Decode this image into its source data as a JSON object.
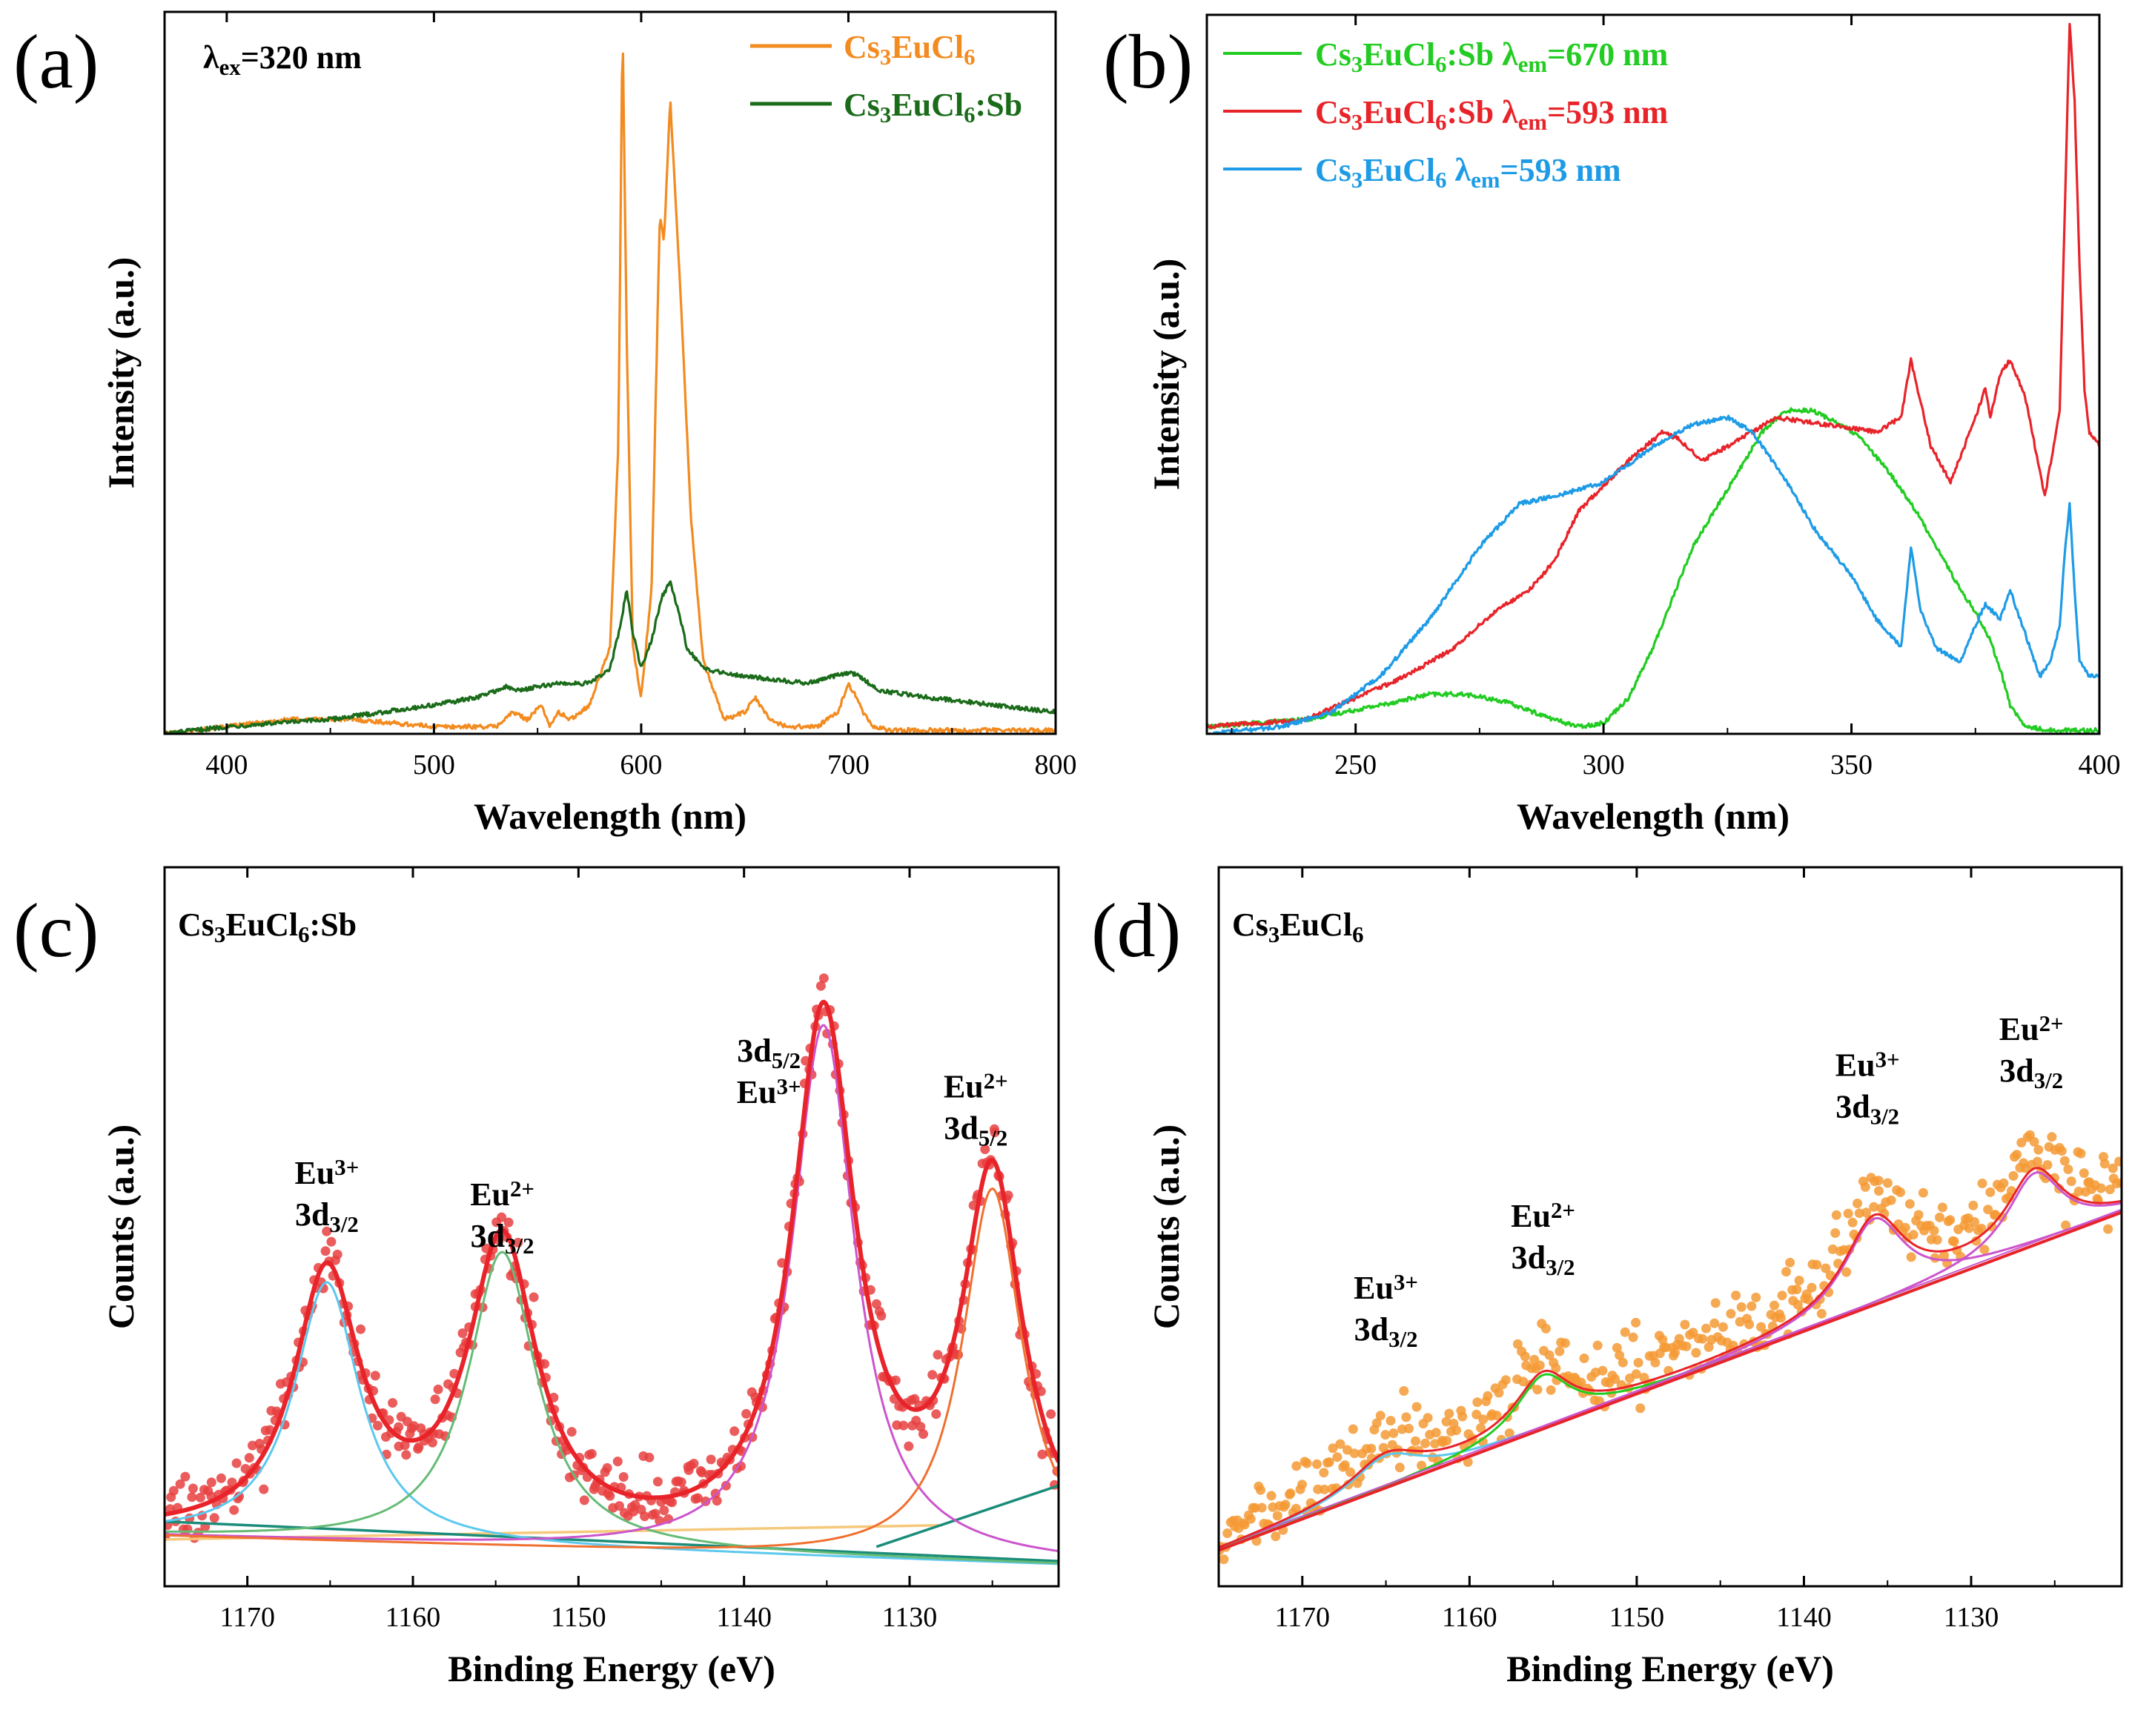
{
  "colors": {
    "orange": "#f28b20",
    "darkgreen": "#1a6b1a",
    "green": "#22cc22",
    "red": "#e8242a",
    "blue": "#1e9be6",
    "fit_red": "#e8242a",
    "cyan": "#5cc8ee",
    "mgreen": "#66bb77",
    "magenta": "#cc55cc",
    "orangefit": "#f07030",
    "beige": "#f5c87a",
    "teal": "#1a8c7a",
    "xpsdot_red": "#e84040",
    "xpsdot_orange": "#f59a35"
  },
  "chart_data": [
    {
      "id": "a",
      "panel_label": "(a)",
      "type": "line",
      "xlabel": "Wavelength (nm)",
      "ylabel": "Intensity (a.u.)",
      "xlim": [
        370,
        800
      ],
      "ylim": [
        0,
        1.0
      ],
      "x_ticks": [
        400,
        500,
        600,
        700,
        800
      ],
      "x_tick_labels": [
        "400",
        "500",
        "600",
        "700",
        "800"
      ],
      "annotation": {
        "main": "λ",
        "sub": "ex",
        "rest": "=320 nm"
      },
      "legend": [
        {
          "parts": [
            [
              "Cs",
              "n"
            ],
            [
              "3",
              "sub"
            ],
            [
              "EuCl",
              "n"
            ],
            [
              "6",
              "sub"
            ]
          ],
          "color_key": "orange"
        },
        {
          "parts": [
            [
              "Cs",
              "n"
            ],
            [
              "3",
              "sub"
            ],
            [
              "EuCl",
              "n"
            ],
            [
              "6",
              "sub"
            ],
            [
              ":Sb",
              "n"
            ]
          ],
          "color_key": "darkgreen"
        }
      ],
      "series": [
        {
          "name": "Cs3EuCl6",
          "color_key": "orange",
          "x": [
            370,
            400,
            430,
            460,
            500,
            520,
            530,
            538,
            545,
            552,
            556,
            560,
            566,
            575,
            585,
            589,
            591,
            593,
            596,
            600,
            605,
            609,
            611,
            614,
            617,
            620,
            624,
            630,
            640,
            650,
            655,
            662,
            670,
            685,
            695,
            700,
            703,
            707,
            712,
            720,
            760,
            800
          ],
          "y": [
            0.0,
            0.01,
            0.02,
            0.02,
            0.01,
            0.01,
            0.01,
            0.03,
            0.02,
            0.04,
            0.01,
            0.03,
            0.02,
            0.04,
            0.12,
            0.4,
            0.99,
            0.55,
            0.12,
            0.05,
            0.2,
            0.72,
            0.68,
            0.88,
            0.72,
            0.55,
            0.3,
            0.1,
            0.02,
            0.03,
            0.05,
            0.02,
            0.01,
            0.01,
            0.03,
            0.07,
            0.055,
            0.03,
            0.01,
            0.005,
            0.005,
            0.005
          ]
        },
        {
          "name": "Cs3EuCl6:Sb",
          "color_key": "darkgreen",
          "x": [
            370,
            400,
            450,
            500,
            520,
            535,
            540,
            550,
            560,
            575,
            585,
            590,
            593,
            596,
            600,
            605,
            610,
            614,
            618,
            622,
            630,
            650,
            680,
            700,
            705,
            715,
            740,
            770,
            800
          ],
          "y": [
            0.0,
            0.01,
            0.02,
            0.04,
            0.05,
            0.065,
            0.06,
            0.065,
            0.07,
            0.07,
            0.09,
            0.15,
            0.2,
            0.14,
            0.09,
            0.13,
            0.19,
            0.21,
            0.17,
            0.12,
            0.09,
            0.08,
            0.07,
            0.085,
            0.08,
            0.06,
            0.05,
            0.04,
            0.03
          ]
        }
      ]
    },
    {
      "id": "b",
      "panel_label": "(b)",
      "type": "line",
      "xlabel": "Wavelength (nm)",
      "ylabel": "Intensity (a.u.)",
      "xlim": [
        220,
        400
      ],
      "ylim": [
        0,
        1.0
      ],
      "x_ticks": [
        250,
        300,
        350,
        400
      ],
      "x_tick_labels": [
        "250",
        "300",
        "350",
        "400"
      ],
      "legend": [
        {
          "parts": [
            [
              "Cs",
              "n"
            ],
            [
              "3",
              "sub"
            ],
            [
              "EuCl",
              "n"
            ],
            [
              "6",
              "sub"
            ],
            [
              ":Sb  ",
              "n"
            ],
            [
              "λ",
              "n"
            ],
            [
              "em",
              "sub"
            ],
            [
              "=670 nm",
              "n"
            ]
          ],
          "color_key": "green"
        },
        {
          "parts": [
            [
              "Cs",
              "n"
            ],
            [
              "3",
              "sub"
            ],
            [
              "EuCl",
              "n"
            ],
            [
              "6",
              "sub"
            ],
            [
              ":Sb  ",
              "n"
            ],
            [
              "λ",
              "n"
            ],
            [
              "em",
              "sub"
            ],
            [
              "=593 nm",
              "n"
            ]
          ],
          "color_key": "red"
        },
        {
          "parts": [
            [
              "Cs",
              "n"
            ],
            [
              "3",
              "sub"
            ],
            [
              "EuCl",
              "n"
            ],
            [
              "6",
              "sub"
            ],
            [
              "        ",
              "n"
            ],
            [
              "λ",
              "n"
            ],
            [
              "em",
              "sub"
            ],
            [
              "=593 nm",
              "n"
            ]
          ],
          "color_key": "blue"
        }
      ],
      "series": [
        {
          "name": "Cs3EuCl6:Sb em 670 nm",
          "color_key": "green",
          "x": [
            220,
            240,
            255,
            265,
            272,
            280,
            290,
            295,
            300,
            305,
            310,
            318,
            325,
            332,
            337,
            342,
            348,
            352,
            358,
            363,
            368,
            372,
            375,
            378,
            380,
            382,
            385,
            390,
            400
          ],
          "y": [
            0.01,
            0.02,
            0.04,
            0.055,
            0.055,
            0.045,
            0.02,
            0.01,
            0.015,
            0.05,
            0.12,
            0.26,
            0.34,
            0.42,
            0.45,
            0.45,
            0.43,
            0.41,
            0.36,
            0.31,
            0.25,
            0.2,
            0.17,
            0.13,
            0.09,
            0.04,
            0.01,
            0.005,
            0.005
          ]
        },
        {
          "name": "Cs3EuCl6:Sb em 593 nm",
          "color_key": "red",
          "x": [
            220,
            240,
            250,
            260,
            270,
            278,
            285,
            290,
            295,
            305,
            312,
            315,
            320,
            325,
            330,
            335,
            345,
            355,
            360,
            362,
            364,
            366,
            370,
            375,
            377,
            378,
            380,
            382,
            385,
            389,
            392,
            394,
            395,
            396,
            397,
            398,
            400
          ],
          "y": [
            0.01,
            0.02,
            0.05,
            0.08,
            0.12,
            0.17,
            0.2,
            0.24,
            0.31,
            0.38,
            0.42,
            0.41,
            0.38,
            0.4,
            0.42,
            0.44,
            0.43,
            0.42,
            0.44,
            0.52,
            0.46,
            0.4,
            0.35,
            0.44,
            0.48,
            0.44,
            0.5,
            0.52,
            0.47,
            0.33,
            0.45,
            0.99,
            0.88,
            0.65,
            0.48,
            0.42,
            0.4
          ]
        },
        {
          "name": "Cs3EuCl6 em 593 nm",
          "color_key": "blue",
          "x": [
            220,
            235,
            245,
            255,
            265,
            275,
            283,
            290,
            300,
            310,
            318,
            325,
            330,
            337,
            343,
            350,
            355,
            360,
            362,
            364,
            367,
            372,
            375,
            377,
            380,
            382,
            385,
            388,
            390,
            392,
            393,
            394,
            395,
            396,
            398,
            400
          ],
          "y": [
            0.0,
            0.01,
            0.03,
            0.08,
            0.16,
            0.26,
            0.32,
            0.33,
            0.35,
            0.4,
            0.43,
            0.44,
            0.42,
            0.35,
            0.28,
            0.22,
            0.16,
            0.12,
            0.26,
            0.17,
            0.12,
            0.1,
            0.15,
            0.18,
            0.16,
            0.2,
            0.14,
            0.08,
            0.1,
            0.15,
            0.25,
            0.32,
            0.2,
            0.1,
            0.08,
            0.08
          ]
        }
      ]
    },
    {
      "id": "c",
      "panel_label": "(c)",
      "type": "scatter",
      "xlabel": "Binding Energy (eV)",
      "ylabel": "Counts (a.u.)",
      "xlim": [
        1175,
        1121
      ],
      "ylim": [
        0,
        1.0
      ],
      "x_ticks": [
        1170,
        1160,
        1150,
        1140,
        1130
      ],
      "x_tick_labels": [
        "1170",
        "1160",
        "1150",
        "1140",
        "1130"
      ],
      "sample_label": {
        "parts": [
          [
            "Cs",
            "n"
          ],
          [
            "3",
            "sub"
          ],
          [
            "EuCl",
            "n"
          ],
          [
            "6",
            "sub"
          ],
          [
            ":Sb",
            "n"
          ]
        ]
      },
      "peak_labels": [
        {
          "x": 1165.2,
          "y": 0.56,
          "lines": [
            [
              [
                "Eu",
                "n"
              ],
              [
                "3+",
                "sup"
              ]
            ],
            [
              [
                "3d",
                "n"
              ],
              [
                "3/2",
                "sub"
              ]
            ]
          ]
        },
        {
          "x": 1154.6,
          "y": 0.53,
          "lines": [
            [
              [
                "Eu",
                "n"
              ],
              [
                "2+",
                "sup"
              ]
            ],
            [
              [
                "3d",
                "n"
              ],
              [
                "3/2",
                "sub"
              ]
            ]
          ]
        },
        {
          "x": 1138.5,
          "y": 0.73,
          "lines": [
            [
              [
                "3d",
                "n"
              ],
              [
                "5/2",
                "sub"
              ]
            ],
            [
              [
                "Eu",
                "n"
              ],
              [
                "3+",
                "sup"
              ]
            ]
          ]
        },
        {
          "x": 1126.0,
          "y": 0.68,
          "lines": [
            [
              [
                "Eu",
                "n"
              ],
              [
                "2+",
                "sup"
              ]
            ],
            [
              [
                "3d",
                "n"
              ],
              [
                "5/2",
                "sub"
              ]
            ]
          ]
        }
      ],
      "peaks": [
        {
          "center": 1165.2,
          "height": 0.36,
          "width": 2.4,
          "color_key": "cyan"
        },
        {
          "center": 1154.6,
          "height": 0.41,
          "width": 2.5,
          "color_key": "mgreen"
        },
        {
          "center": 1135.2,
          "height": 0.74,
          "width": 2.3,
          "color_key": "magenta"
        },
        {
          "center": 1125.0,
          "height": 0.52,
          "width": 2.2,
          "color_key": "orangefit"
        }
      ],
      "background": {
        "start": 0.07,
        "end": 0.03
      },
      "extra_lines": [
        {
          "color_key": "beige",
          "x": [
            1175,
            1128
          ],
          "y": [
            0.065,
            0.085
          ]
        },
        {
          "color_key": "teal",
          "x": [
            1175,
            1121
          ],
          "y": [
            0.09,
            0.035
          ]
        },
        {
          "color_key": "teal",
          "x": [
            1132,
            1121
          ],
          "y": [
            0.055,
            0.14
          ]
        }
      ],
      "dot_color_key": "xpsdot_red",
      "fit_color_key": "fit_red",
      "noise": 0.045
    },
    {
      "id": "d",
      "panel_label": "(d)",
      "type": "scatter",
      "xlabel": "Binding Energy (eV)",
      "ylabel": "Counts (a.u.)",
      "xlim": [
        1175,
        1121
      ],
      "ylim": [
        0,
        1.0
      ],
      "x_ticks": [
        1170,
        1160,
        1150,
        1140,
        1130
      ],
      "x_tick_labels": [
        "1170",
        "1160",
        "1150",
        "1140",
        "1130"
      ],
      "sample_label": {
        "parts": [
          [
            "Cs",
            "n"
          ],
          [
            "3",
            "sub"
          ],
          [
            "EuCl",
            "n"
          ],
          [
            "6",
            "sub"
          ]
        ]
      },
      "peak_labels": [
        {
          "x": 1165.0,
          "y": 0.4,
          "lines": [
            [
              [
                "Eu",
                "n"
              ],
              [
                "3+",
                "sup"
              ]
            ],
            [
              [
                "3d",
                "n"
              ],
              [
                "3/2",
                "sub"
              ]
            ]
          ]
        },
        {
          "x": 1155.6,
          "y": 0.5,
          "lines": [
            [
              [
                "Eu",
                "n"
              ],
              [
                "2+",
                "sup"
              ]
            ],
            [
              [
                "3d",
                "n"
              ],
              [
                "3/2",
                "sub"
              ]
            ]
          ]
        },
        {
          "x": 1136.2,
          "y": 0.71,
          "lines": [
            [
              [
                "Eu",
                "n"
              ],
              [
                "3+",
                "sup"
              ]
            ],
            [
              [
                "3d",
                "n"
              ],
              [
                "3/2",
                "sub"
              ]
            ]
          ]
        },
        {
          "x": 1126.4,
          "y": 0.76,
          "lines": [
            [
              [
                "Eu",
                "n"
              ],
              [
                "2+",
                "sup"
              ]
            ],
            [
              [
                "3d",
                "n"
              ],
              [
                "3/2",
                "sub"
              ]
            ]
          ]
        }
      ],
      "peaks": [
        {
          "center": 1165.0,
          "height": 0.045,
          "width": 2.5,
          "color_key": "cyan"
        },
        {
          "center": 1155.6,
          "height": 0.075,
          "width": 2.0,
          "color_key": "green"
        },
        {
          "center": 1135.8,
          "height": 0.12,
          "width": 2.2,
          "color_key": "magenta"
        },
        {
          "center": 1126.2,
          "height": 0.1,
          "width": 2.0,
          "color_key": "magenta"
        }
      ],
      "background": {
        "start": 0.05,
        "end": 0.52
      },
      "background_offset": 0.02,
      "dot_color_key": "xpsdot_orange",
      "fit_color_key": "fit_red",
      "noise": 0.05
    }
  ]
}
